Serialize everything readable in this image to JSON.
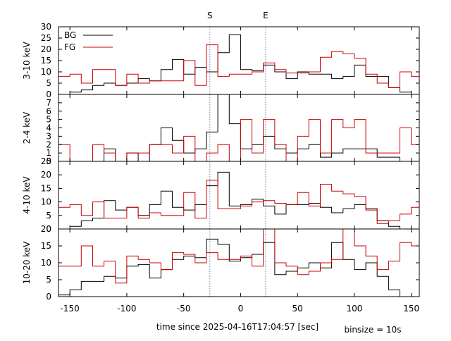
{
  "chart_data": {
    "type": "line",
    "step": true,
    "binsize_label": "binsize = 10s",
    "xlabel": "time since 2025-04-16T17:04:57 [sec]",
    "xlim": [
      -160,
      157
    ],
    "xticks": [
      -150,
      -100,
      -50,
      0,
      50,
      100,
      150
    ],
    "markers": [
      {
        "label": "S",
        "x": -27
      },
      {
        "label": "E",
        "x": 22
      }
    ],
    "colors": {
      "BG": "#000000",
      "FG": "#cc0000",
      "marker": "#6a7fa8"
    },
    "legend": {
      "placement": "top-left",
      "entries": [
        "BG",
        "FG"
      ]
    },
    "panels": [
      {
        "ylabel": "3-10 keV",
        "ylim": [
          0,
          30
        ],
        "yticks": [
          0,
          5,
          10,
          15,
          20,
          25,
          30
        ],
        "show_legend": true,
        "series": [
          {
            "name": "BG",
            "edges": [
              -150,
              -140,
              -130,
              -120,
              -110,
              -100,
              -90,
              -80,
              -70,
              -60,
              -50,
              -40,
              -30,
              -20,
              -10,
              0,
              10,
              20,
              30,
              40,
              50,
              60,
              70,
              80,
              90,
              100,
              110,
              120,
              130,
              140,
              150
            ],
            "values": [
              1,
              2,
              4,
              5,
              4,
              5,
              7,
              6,
              11,
              15.5,
              9,
              12,
              10,
              18.5,
              26.5,
              11,
              10.5,
              13,
              10,
              7,
              10,
              9,
              9,
              7,
              8,
              13,
              8,
              8,
              3,
              1
            ]
          },
          {
            "name": "FG",
            "edges": [
              -160,
              -150,
              -140,
              -130,
              -120,
              -110,
              -100,
              -90,
              -80,
              -70,
              -60,
              -50,
              -40,
              -30,
              -20,
              -10,
              0,
              10,
              20,
              30,
              40,
              50,
              60,
              70,
              80,
              90,
              100,
              110,
              120,
              130,
              140,
              150,
              157
            ],
            "values": [
              8,
              9,
              5,
              11,
              11,
              4,
              9,
              5,
              6,
              6,
              6,
              15,
              4,
              22,
              8,
              9,
              9,
              10,
              14,
              11,
              9.5,
              9.5,
              10,
              16.5,
              19,
              18,
              16,
              9,
              5,
              3,
              10,
              8
            ]
          }
        ]
      },
      {
        "ylabel": "2-4 keV",
        "ylim": [
          0,
          8
        ],
        "yticks": [
          0,
          1,
          2,
          3,
          4,
          5,
          6,
          7
        ],
        "show_legend": false,
        "series": [
          {
            "name": "BG",
            "edges": [
              -150,
              -140,
              -130,
              -120,
              -110,
              -100,
              -90,
              -80,
              -70,
              -60,
              -50,
              -40,
              -30,
              -20,
              -10,
              0,
              10,
              20,
              30,
              40,
              50,
              60,
              70,
              80,
              90,
              100,
              110,
              120,
              130,
              140,
              150
            ],
            "values": [
              0,
              0,
              0,
              1.5,
              0,
              1,
              0,
              2,
              4,
              2.5,
              1,
              1.5,
              3.5,
              8,
              4.5,
              1.5,
              2,
              3,
              1.5,
              1,
              1.5,
              2,
              0.5,
              1,
              1.5,
              1.5,
              1.5,
              0.5,
              0.5,
              0
            ]
          },
          {
            "name": "FG",
            "edges": [
              -160,
              -150,
              -140,
              -130,
              -120,
              -110,
              -100,
              -90,
              -80,
              -70,
              -60,
              -50,
              -40,
              -30,
              -20,
              -10,
              0,
              10,
              20,
              30,
              40,
              50,
              60,
              70,
              80,
              90,
              100,
              110,
              120,
              130,
              140,
              150,
              157
            ],
            "values": [
              2,
              0,
              0,
              2,
              1,
              0,
              1,
              1,
              2,
              2,
              1,
              3,
              0,
              1,
              2,
              0,
              5,
              1,
              5,
              2,
              0,
              3,
              5,
              1,
              5,
              4,
              5,
              1,
              1,
              1,
              4,
              2
            ]
          }
        ]
      },
      {
        "ylabel": "4-10 keV",
        "ylim": [
          0,
          25
        ],
        "yticks": [
          0,
          5,
          10,
          15,
          20,
          25
        ],
        "show_legend": false,
        "series": [
          {
            "name": "BG",
            "edges": [
              -150,
              -140,
              -130,
              -120,
              -110,
              -100,
              -90,
              -80,
              -70,
              -60,
              -50,
              -40,
              -30,
              -20,
              -10,
              0,
              10,
              20,
              30,
              40,
              50,
              60,
              70,
              80,
              90,
              100,
              110,
              120,
              130,
              140,
              150
            ],
            "values": [
              1,
              3,
              4,
              10.5,
              7,
              8,
              5,
              9,
              14,
              8,
              7,
              9,
              16,
              21,
              8.5,
              9,
              11,
              8.5,
              5.5,
              9,
              9,
              9.5,
              8,
              6,
              7.5,
              9,
              7.5,
              3,
              1,
              0
            ]
          },
          {
            "name": "FG",
            "edges": [
              -160,
              -150,
              -140,
              -130,
              -120,
              -110,
              -100,
              -90,
              -80,
              -70,
              -60,
              -50,
              -40,
              -30,
              -20,
              -10,
              0,
              10,
              20,
              30,
              40,
              50,
              60,
              70,
              80,
              90,
              100,
              110,
              120,
              130,
              140,
              150,
              157
            ],
            "values": [
              8,
              9,
              5,
              10,
              4,
              4,
              8,
              4,
              6,
              5,
              5,
              13.5,
              4,
              18,
              7.5,
              7.5,
              8.5,
              10,
              10.5,
              9.5,
              9,
              13.5,
              8.5,
              16.5,
              14,
              13,
              12,
              7,
              2,
              3,
              5.5,
              8
            ]
          }
        ]
      },
      {
        "ylabel": "10-20 keV",
        "ylim": [
          0,
          20
        ],
        "yticks": [
          0,
          5,
          10,
          15,
          20
        ],
        "show_legend": false,
        "series": [
          {
            "name": "BG",
            "edges": [
              -160,
              -150,
              -140,
              -130,
              -120,
              -110,
              -100,
              -90,
              -80,
              -70,
              -60,
              -50,
              -40,
              -30,
              -20,
              -10,
              0,
              10,
              20,
              30,
              40,
              50,
              60,
              70,
              80,
              90,
              100,
              110,
              120,
              130,
              140,
              150
            ],
            "values": [
              0.5,
              2,
              4.5,
              4.5,
              6,
              5.5,
              9,
              9.5,
              5.5,
              8,
              11,
              12,
              11.5,
              17,
              15.5,
              10.5,
              11.5,
              12.5,
              16,
              6.5,
              7.5,
              8.5,
              10,
              8.5,
              16,
              11,
              8,
              10,
              6,
              2,
              0
            ]
          },
          {
            "name": "FG",
            "edges": [
              -160,
              -150,
              -140,
              -130,
              -120,
              -110,
              -100,
              -90,
              -80,
              -70,
              -60,
              -50,
              -40,
              -30,
              -20,
              -10,
              0,
              10,
              20,
              30,
              40,
              50,
              60,
              70,
              80,
              90,
              100,
              110,
              120,
              130,
              140,
              150,
              157
            ],
            "values": [
              9,
              9,
              15,
              9,
              10.5,
              4,
              12,
              11,
              10,
              8,
              13,
              12.5,
              10,
              13,
              11,
              11,
              12,
              9,
              21,
              10,
              9,
              6.5,
              7.5,
              10,
              11,
              21,
              15,
              12,
              8,
              10.5,
              16,
              15
            ]
          }
        ]
      }
    ]
  }
}
